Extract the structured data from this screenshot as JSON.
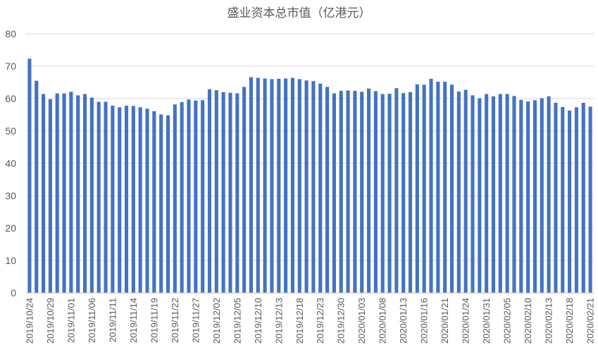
{
  "chart_data": {
    "type": "bar",
    "title": "盛业资本总市值（亿港元）",
    "xlabel": "",
    "ylabel": "",
    "ylim": [
      0,
      80
    ],
    "yticks": [
      0,
      10,
      20,
      30,
      40,
      50,
      60,
      70,
      80
    ],
    "grid": true,
    "legend": "none",
    "bar_color": "#4472c4",
    "tick_labels": [
      "2019/10/24",
      "2019/10/29",
      "2019/11/01",
      "2019/11/06",
      "2019/11/11",
      "2019/11/14",
      "2019/11/19",
      "2019/11/22",
      "2019/11/27",
      "2019/12/02",
      "2019/12/05",
      "2019/12/10",
      "2019/12/13",
      "2019/12/18",
      "2019/12/23",
      "2019/12/30",
      "2020/01/03",
      "2020/01/08",
      "2020/01/13",
      "2020/01/16",
      "2020/01/21",
      "2020/01/24",
      "2020/01/31",
      "2020/02/05",
      "2020/02/10",
      "2020/02/13",
      "2020/02/18",
      "2020/02/21"
    ],
    "values": [
      72.3,
      65.5,
      61.4,
      59.8,
      61.6,
      61.6,
      62.1,
      61.0,
      61.4,
      60.3,
      59.0,
      59.0,
      57.8,
      57.3,
      57.8,
      57.7,
      57.3,
      56.9,
      56.1,
      55.1,
      54.8,
      58.2,
      58.9,
      59.7,
      59.4,
      59.5,
      62.9,
      62.6,
      62.0,
      61.8,
      61.6,
      63.6,
      66.6,
      66.4,
      66.2,
      66.0,
      66.1,
      66.2,
      66.4,
      66.0,
      65.6,
      65.4,
      64.6,
      63.6,
      61.6,
      62.4,
      62.5,
      62.4,
      62.1,
      63.1,
      62.3,
      61.4,
      61.5,
      63.2,
      61.7,
      62.0,
      64.4,
      64.3,
      66.1,
      65.2,
      65.2,
      64.3,
      62.2,
      62.7,
      61.0,
      60.1,
      61.4,
      60.7,
      61.4,
      61.4,
      60.8,
      59.6,
      59.1,
      59.5,
      60.1,
      60.7,
      58.7,
      57.4,
      56.3,
      57.3,
      58.7,
      57.5
    ]
  }
}
